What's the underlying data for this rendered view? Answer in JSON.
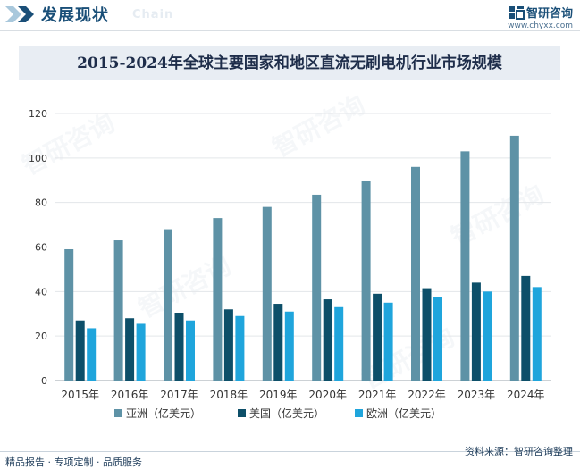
{
  "header": {
    "title": "发展现状",
    "subtitle_en": "Chain",
    "brand_name": "智研咨询",
    "brand_url": "www.chyxx.com"
  },
  "footer": {
    "left_text": "精品报告 · 专项定制 · 品质服务",
    "source_text": "资料来源：智研咨询整理"
  },
  "watermark_text": "智研咨询",
  "colors": {
    "asia": "#5e92a6",
    "usa": "#0d4f69",
    "europe": "#1fa5dc",
    "brand": "#1a4f78"
  },
  "chart_data": {
    "type": "bar",
    "title": "2015-2024年全球主要国家和地区直流无刷电机行业市场规模",
    "xlabel": "",
    "ylabel": "",
    "ylim": [
      0,
      120
    ],
    "yticks": [
      0,
      20,
      40,
      60,
      80,
      100,
      120
    ],
    "grid": true,
    "legend_position": "bottom",
    "categories": [
      "2015年",
      "2016年",
      "2017年",
      "2018年",
      "2019年",
      "2020年",
      "2021年",
      "2022年",
      "2023年",
      "2024年"
    ],
    "series": [
      {
        "name": "亚洲（亿美元）",
        "color": "#5e92a6",
        "values": [
          59,
          63,
          68,
          73,
          78,
          83.5,
          89.5,
          96,
          103,
          110
        ]
      },
      {
        "name": "美国（亿美元）",
        "color": "#0d4f69",
        "values": [
          27,
          28,
          30.5,
          32,
          34.5,
          36.5,
          39,
          41.5,
          44,
          47
        ]
      },
      {
        "name": "欧洲（亿美元）",
        "color": "#1fa5dc",
        "values": [
          23.5,
          25.5,
          27,
          29,
          31,
          33,
          35,
          37.5,
          40,
          42
        ]
      }
    ]
  }
}
